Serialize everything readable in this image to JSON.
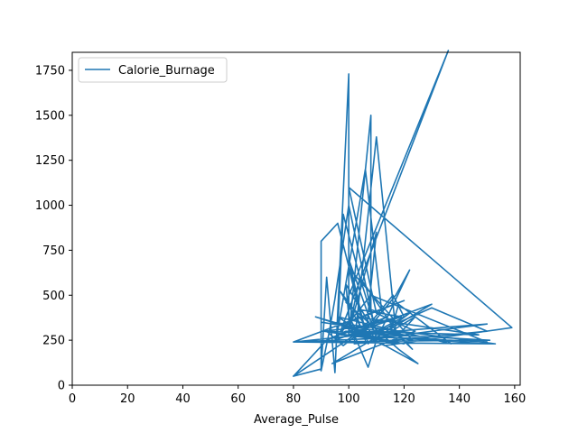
{
  "chart_data": {
    "type": "line",
    "title": "",
    "xlabel": "Average_Pulse",
    "ylabel": "",
    "xlim": [
      0,
      162
    ],
    "ylim": [
      0,
      1850
    ],
    "x_ticks": [
      0,
      20,
      40,
      60,
      80,
      100,
      120,
      140,
      160
    ],
    "y_ticks": [
      0,
      250,
      500,
      750,
      1000,
      1250,
      1500,
      1750
    ],
    "grid": false,
    "legend_position": "top-left",
    "series": [
      {
        "name": "Calorie_Burnage",
        "color": "#1f77b4",
        "x": [
          80,
          90,
          92,
          95,
          100,
          100,
          108,
          108,
          112,
          106,
          96,
          98,
          104,
          110,
          120,
          116,
          108,
          100,
          106,
          96,
          90,
          90,
          93,
          95,
          100,
          109,
          117,
          122,
          110,
          97,
          106,
          125,
          118,
          99,
          136,
          97,
          104,
          119,
          103,
          100,
          99,
          110,
          116,
          118,
          137,
          96,
          104,
          123,
          100,
          107,
          110,
          88,
          108,
          130,
          150,
          102,
          110,
          117,
          123,
          115,
          122,
          100,
          110,
          106,
          103,
          147,
          102,
          113,
          159,
          100,
          110,
          124,
          94,
          130,
          95,
          108,
          150,
          97,
          114,
          107,
          91,
          120,
          105,
          80,
          153,
          94,
          112,
          100,
          104,
          118,
          124,
          110,
          107,
          100,
          120,
          80,
          150,
          100,
          150,
          110,
          80,
          151,
          92,
          98,
          109,
          80,
          92,
          99,
          120,
          90
        ],
        "y": [
          50,
          90,
          600,
          70,
          1730,
          280,
          1500,
          420,
          400,
          1200,
          300,
          950,
          600,
          300,
          380,
          500,
          350,
          700,
          300,
          900,
          800,
          80,
          300,
          480,
          1000,
          350,
          500,
          640,
          250,
          520,
          280,
          120,
          200,
          460,
          1860,
          300,
          420,
          380,
          300,
          380,
          560,
          280,
          340,
          450,
          230,
          380,
          300,
          250,
          650,
          230,
          280,
          380,
          280,
          430,
          300,
          230,
          1380,
          300,
          200,
          320,
          400,
          300,
          850,
          250,
          380,
          280,
          300,
          220,
          320,
          1100,
          400,
          300,
          120,
          450,
          250,
          500,
          240,
          280,
          380,
          330,
          300,
          230,
          280,
          240,
          230,
          350,
          250,
          300,
          600,
          280,
          380,
          250,
          100,
          350,
          470,
          240,
          230,
          280,
          340,
          260,
          240,
          250,
          300,
          220,
          350,
          50,
          250,
          300,
          280,
          350
        ]
      }
    ]
  }
}
